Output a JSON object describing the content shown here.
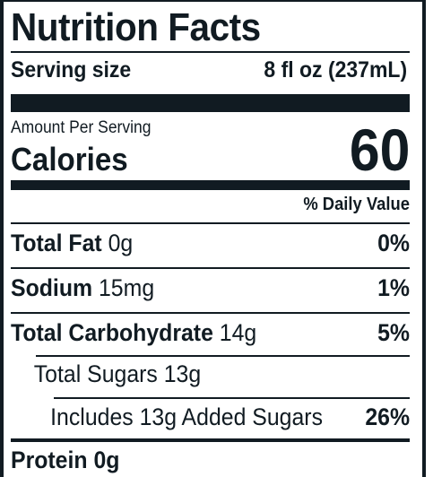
{
  "label": {
    "title": "Nutrition Facts",
    "serving_size_label": "Serving size",
    "serving_size_value": "8 fl oz (237mL)",
    "amount_per_serving": "Amount Per Serving",
    "calories_label": "Calories",
    "calories_value": "60",
    "daily_value_header": "% Daily Value",
    "nutrients": [
      {
        "name": "Total Fat",
        "amount": "0g",
        "dv": "0%"
      },
      {
        "name": "Sodium",
        "amount": "15mg",
        "dv": "1%"
      },
      {
        "name": "Total Carbohydrate",
        "amount": "14g",
        "dv": "5%"
      },
      {
        "name": "Total Sugars 13g",
        "amount": "",
        "dv": ""
      },
      {
        "name": "Includes 13g Added Sugars",
        "amount": "",
        "dv": "26%"
      },
      {
        "name": "Protein 0g",
        "amount": "",
        "dv": ""
      }
    ]
  }
}
